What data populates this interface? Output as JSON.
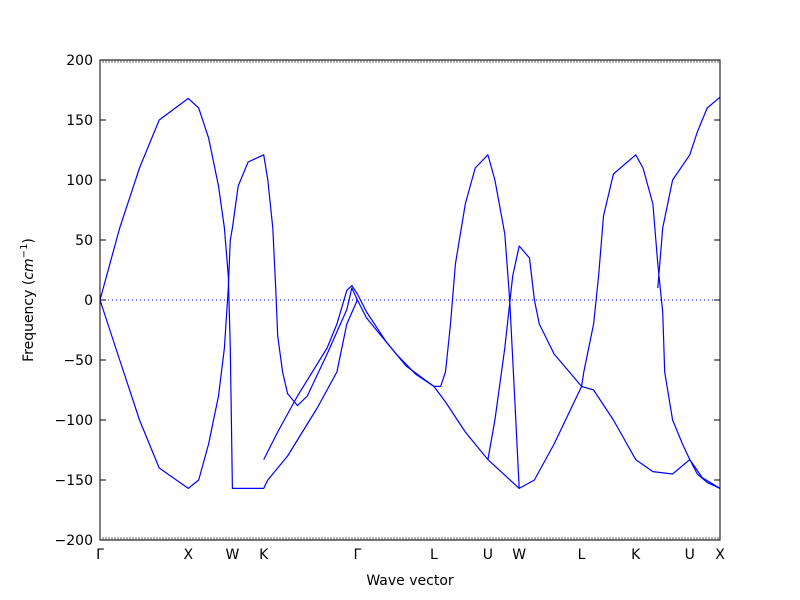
{
  "chart_data": {
    "type": "line",
    "title": "",
    "xlabel": "Wave vector",
    "ylabel_prefix": "Frequency (",
    "ylabel_unit_base": "cm",
    "ylabel_unit_exp": "−1",
    "ylabel_suffix": ")",
    "ylim": [
      -200,
      200
    ],
    "yticks": [
      -200,
      -150,
      -100,
      -50,
      0,
      50,
      100,
      150,
      200
    ],
    "ytick_labels": [
      "−200",
      "−150",
      "−100",
      "−50",
      "0",
      "50",
      "100",
      "150",
      "200"
    ],
    "xlim": [
      0,
      6.28
    ],
    "xticks": [
      {
        "label": "Γ",
        "x": 0
      },
      {
        "label": "X",
        "x": 0.894
      },
      {
        "label": "W",
        "x": 1.341
      },
      {
        "label": "K",
        "x": 1.658
      },
      {
        "label": "Γ",
        "x": 2.607
      },
      {
        "label": "L",
        "x": 3.382
      },
      {
        "label": "U",
        "x": 3.929
      },
      {
        "label": "W",
        "x": 4.246
      },
      {
        "label": "L",
        "x": 4.878
      },
      {
        "label": "K",
        "x": 5.426
      },
      {
        "label": "U",
        "x": 5.974
      },
      {
        "label": "X",
        "x": 6.28
      }
    ],
    "zero_line": true,
    "line_color": "#0000ff",
    "series": [
      {
        "values": [
          [
            0,
            0
          ],
          [
            0.2,
            60
          ],
          [
            0.4,
            110
          ],
          [
            0.6,
            150
          ],
          [
            0.894,
            168
          ],
          [
            1.0,
            160
          ],
          [
            1.1,
            135
          ],
          [
            1.2,
            95
          ],
          [
            1.26,
            60
          ],
          [
            1.3,
            20
          ],
          [
            1.32,
            -40
          ],
          [
            1.341,
            -157
          ],
          [
            1.5,
            -157
          ],
          [
            1.658,
            -157
          ],
          [
            1.7,
            -150
          ],
          [
            1.9,
            -130
          ],
          [
            2.2,
            -90
          ],
          [
            2.4,
            -60
          ],
          [
            2.5,
            -20
          ],
          [
            2.607,
            0
          ],
          [
            2.7,
            -15
          ],
          [
            2.8,
            -25
          ],
          [
            3.0,
            -45
          ],
          [
            3.2,
            -62
          ],
          [
            3.382,
            -72
          ],
          [
            3.5,
            -85
          ],
          [
            3.7,
            -110
          ],
          [
            3.929,
            -133
          ],
          [
            4.246,
            -157
          ],
          [
            4.4,
            -150
          ],
          [
            4.6,
            -120
          ],
          [
            4.878,
            -72
          ],
          [
            5.0,
            -75
          ],
          [
            5.2,
            -100
          ],
          [
            5.426,
            -133
          ],
          [
            5.6,
            -143
          ],
          [
            5.8,
            -145
          ],
          [
            5.974,
            -133
          ],
          [
            6.1,
            -148
          ],
          [
            6.28,
            -157
          ]
        ]
      },
      {
        "values": [
          [
            0,
            0
          ],
          [
            0.2,
            -50
          ],
          [
            0.4,
            -100
          ],
          [
            0.6,
            -140
          ],
          [
            0.894,
            -157
          ],
          [
            1.0,
            -150
          ],
          [
            1.1,
            -120
          ],
          [
            1.2,
            -80
          ],
          [
            1.26,
            -40
          ],
          [
            1.3,
            10
          ],
          [
            1.32,
            50
          ],
          [
            1.341,
            60
          ],
          [
            1.4,
            95
          ],
          [
            1.5,
            115
          ],
          [
            1.658,
            121
          ],
          [
            1.7,
            100
          ],
          [
            1.75,
            60
          ],
          [
            1.78,
            10
          ],
          [
            1.8,
            -30
          ],
          [
            1.85,
            -60
          ],
          [
            1.9,
            -78
          ],
          [
            2.0,
            -88
          ],
          [
            2.1,
            -80
          ],
          [
            2.3,
            -45
          ],
          [
            2.5,
            -8
          ],
          [
            2.55,
            10
          ],
          [
            2.607,
            0
          ]
        ]
      },
      {
        "values": [
          [
            1.658,
            -133
          ],
          [
            1.8,
            -110
          ],
          [
            2.0,
            -80
          ],
          [
            2.3,
            -40
          ],
          [
            2.4,
            -20
          ],
          [
            2.5,
            8
          ],
          [
            2.55,
            12
          ],
          [
            2.607,
            5
          ],
          [
            2.7,
            -10
          ],
          [
            2.9,
            -35
          ],
          [
            3.1,
            -55
          ],
          [
            3.382,
            -72
          ],
          [
            3.45,
            -72
          ],
          [
            3.5,
            -60
          ],
          [
            3.55,
            -20
          ],
          [
            3.6,
            30
          ],
          [
            3.7,
            80
          ],
          [
            3.8,
            110
          ],
          [
            3.929,
            121
          ],
          [
            4.0,
            100
          ],
          [
            4.1,
            55
          ],
          [
            4.15,
            0
          ],
          [
            4.2,
            -80
          ],
          [
            4.246,
            -157
          ]
        ]
      },
      {
        "values": [
          [
            3.929,
            -133
          ],
          [
            4.0,
            -100
          ],
          [
            4.1,
            -40
          ],
          [
            4.18,
            20
          ],
          [
            4.246,
            45
          ],
          [
            4.35,
            35
          ],
          [
            4.4,
            0
          ],
          [
            4.45,
            -20
          ],
          [
            4.6,
            -45
          ],
          [
            4.878,
            -72
          ],
          [
            4.9,
            -60
          ],
          [
            5.0,
            -20
          ],
          [
            5.05,
            20
          ],
          [
            5.1,
            70
          ],
          [
            5.2,
            105
          ],
          [
            5.426,
            121
          ],
          [
            5.5,
            110
          ],
          [
            5.6,
            80
          ],
          [
            5.65,
            30
          ],
          [
            5.7,
            -10
          ],
          [
            5.72,
            -60
          ],
          [
            5.8,
            -100
          ],
          [
            5.9,
            -120
          ],
          [
            5.974,
            -133
          ],
          [
            6.05,
            -145
          ],
          [
            6.15,
            -152
          ],
          [
            6.28,
            -157
          ]
        ]
      },
      {
        "values": [
          [
            5.65,
            10
          ],
          [
            5.7,
            60
          ],
          [
            5.8,
            100
          ],
          [
            5.974,
            121
          ],
          [
            6.05,
            140
          ],
          [
            6.15,
            160
          ],
          [
            6.28,
            169
          ]
        ]
      }
    ]
  }
}
